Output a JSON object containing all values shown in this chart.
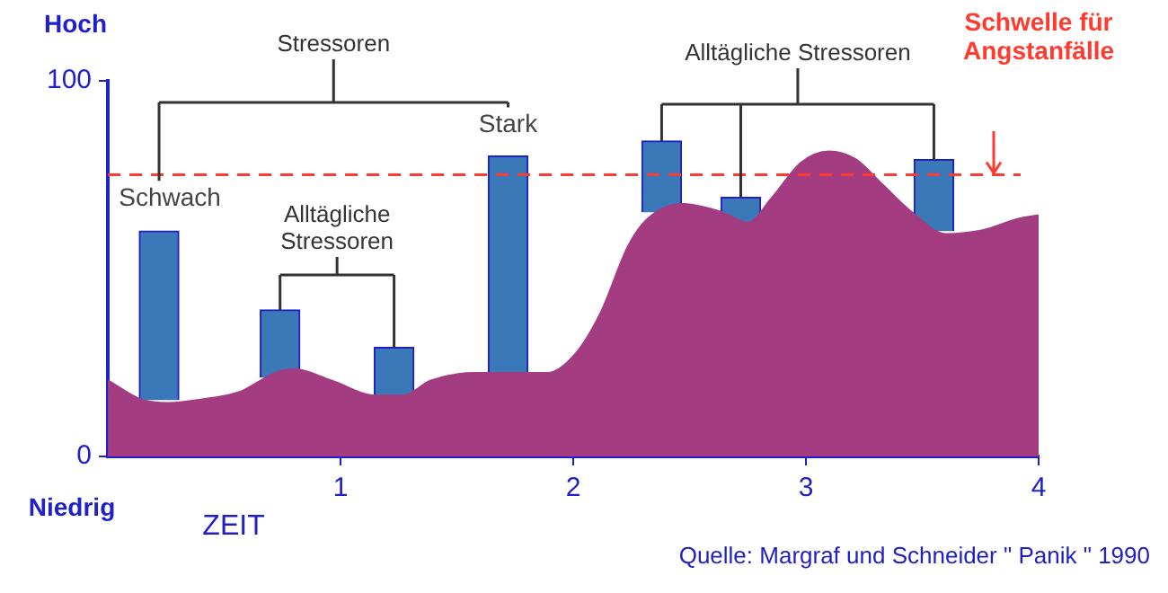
{
  "chart_data": {
    "type": "area",
    "xlabel": "ZEIT",
    "xlim": [
      0,
      4
    ],
    "xticks": [
      1,
      2,
      3,
      4
    ],
    "ylim": [
      0,
      100
    ],
    "yticks": [
      0,
      100
    ],
    "grid": false,
    "legend": false,
    "marker": "none",
    "series": [
      {
        "type": "area",
        "color": "#a43c82",
        "x": [
          0,
          0.14,
          0.26,
          0.41,
          0.57,
          0.72,
          0.8,
          0.96,
          1.15,
          1.27,
          1.39,
          1.58,
          1.74,
          1.89,
          2.01,
          2.12,
          2.24,
          2.32,
          2.47,
          2.63,
          2.75,
          2.86,
          2.98,
          3.1,
          3.21,
          3.33,
          3.45,
          3.6,
          3.76,
          3.91,
          4
        ],
        "values": [
          20,
          15,
          14,
          15,
          17,
          22,
          23,
          20,
          16,
          16,
          20,
          22,
          22,
          22,
          27,
          38,
          56,
          63,
          67,
          65,
          62,
          69,
          78,
          81,
          79,
          72,
          65,
          59,
          60,
          63,
          64
        ]
      },
      {
        "type": "bar",
        "color": "#3a78b8",
        "x": [
          0.22,
          0.74,
          1.23,
          1.72,
          2.38,
          2.72,
          3.55
        ],
        "base": [
          15,
          21,
          15,
          22,
          65,
          62,
          60
        ],
        "values": [
          45,
          18,
          14,
          58,
          19,
          7,
          19
        ]
      }
    ],
    "ref_lines": [
      {
        "axis": "y",
        "value": 75,
        "label": "Schwelle für Angstanfälle",
        "color": "#ff3b30",
        "line_style": "dashed"
      }
    ],
    "annotations": [
      "Hoch",
      "Niedrig",
      "Stressoren",
      {
        "text": "Schwach",
        "x": 0.22,
        "y": 60
      },
      {
        "text": "Alltägliche Stressoren",
        "x": 0.74,
        "y": 39
      },
      {
        "text": "Stark",
        "x": 1.72,
        "y": 80
      },
      "Alltägliche Stressoren",
      "Quelle: Margraf und Schneider \" Panik \" 1990"
    ]
  }
}
